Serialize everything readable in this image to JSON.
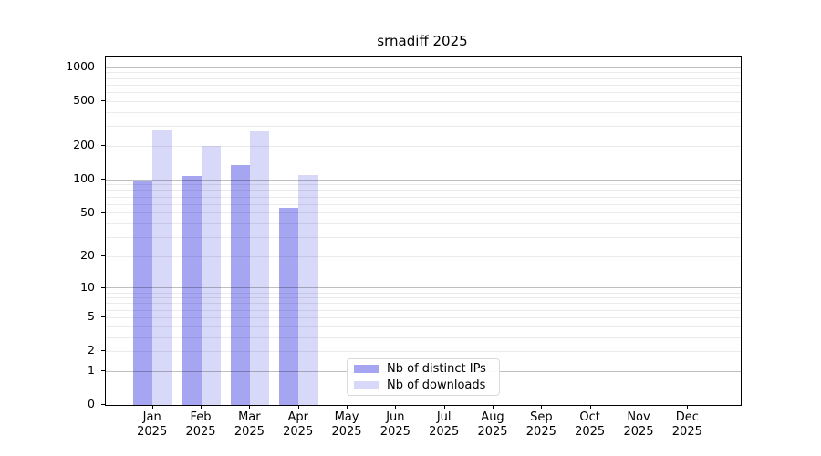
{
  "chart_data": {
    "type": "bar",
    "title": "srnadiff 2025",
    "categories": [
      "Jan",
      "Feb",
      "Mar",
      "Apr",
      "May",
      "Jun",
      "Jul",
      "Aug",
      "Sep",
      "Oct",
      "Nov",
      "Dec"
    ],
    "year_label": "2025",
    "series": [
      {
        "name": "Nb of distinct IPs",
        "color": "#a5a5f2",
        "values": [
          96,
          107,
          136,
          56,
          0,
          0,
          0,
          0,
          0,
          0,
          0,
          0
        ]
      },
      {
        "name": "Nb of downloads",
        "color": "#d8d8f8",
        "values": [
          278,
          200,
          270,
          110,
          0,
          0,
          0,
          0,
          0,
          0,
          0,
          0
        ]
      }
    ],
    "y_ticks": [
      0,
      1,
      2,
      5,
      10,
      20,
      50,
      100,
      200,
      500,
      1000
    ],
    "y_scale": "log1p",
    "ylim": [
      0,
      1250
    ],
    "xlabel": "",
    "ylabel": "",
    "grid": true,
    "legend_position": "lower-center"
  }
}
